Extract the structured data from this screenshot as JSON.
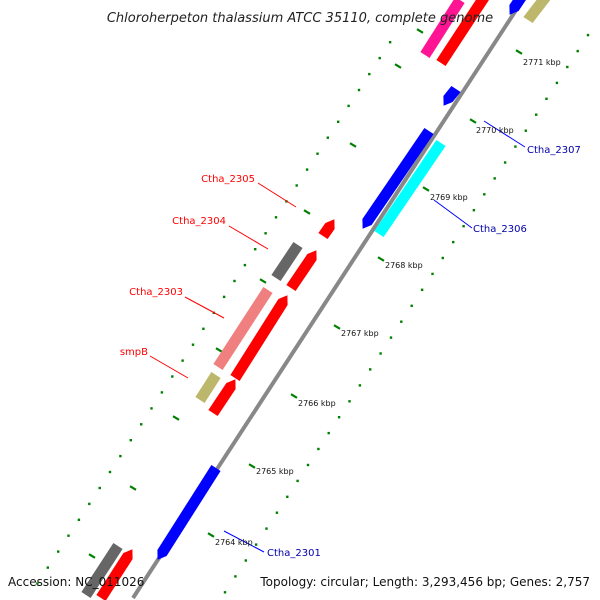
{
  "title": "Chloroherpeton thalassium ATCC 35110, complete genome",
  "footer": {
    "accession": "Accession: NC_011026",
    "summary": "Topology: circular; Length: 3,293,456 bp; Genes: 2,757"
  },
  "ruler": [
    "2764 kbp",
    "2765 kbp",
    "2766 kbp",
    "2767 kbp",
    "2768 kbp",
    "2769 kbp",
    "2770 kbp",
    "2771 kbp"
  ],
  "gene_labels": {
    "left": [
      "Ctha_2305",
      "Ctha_2304",
      "Ctha_2303",
      "smpB"
    ],
    "right": [
      "Ctha_2307",
      "Ctha_2306",
      "Ctha_2301"
    ]
  },
  "colors": {
    "forward": "#ff0000",
    "reverse": "#0000ff",
    "highlight_pink": "#f08080",
    "highlight_cyan": "#00ffff",
    "magenta": "#ff1493",
    "gray": "#666666",
    "khaki": "#bdb76b",
    "backbone": "#888888",
    "ticks": "#008000"
  }
}
